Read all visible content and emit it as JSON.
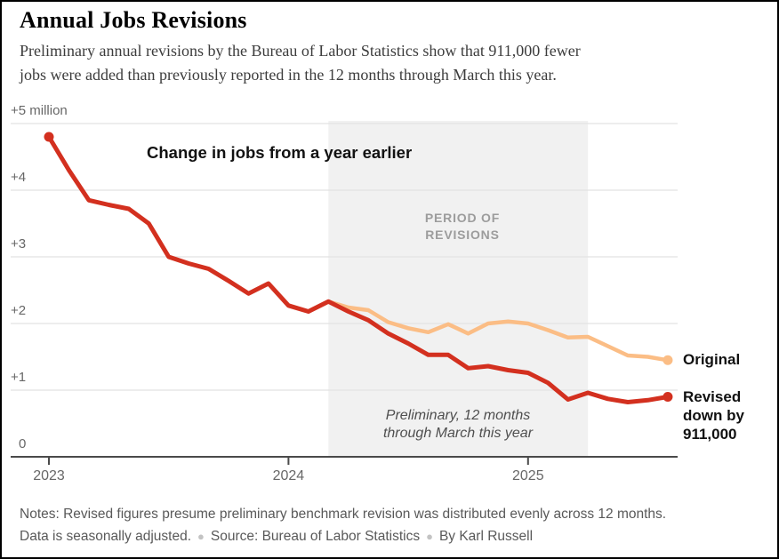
{
  "header": {
    "title": "Annual Jobs Revisions",
    "subtitle": "Preliminary annual revisions by the Bureau of Labor Statistics show that 911,000 fewer\njobs were added than previously reported in the 12 months through March this year."
  },
  "chart_data": {
    "type": "line",
    "title_annotation": "Change in jobs from a year earlier",
    "colors": {
      "original": "#fbbd85",
      "revised": "#d3301f",
      "band": "#f1f1f1",
      "grid": "#e2e2e2",
      "axis": "#4a4a4a"
    },
    "x_axis": {
      "months": [
        "2023-01",
        "2023-02",
        "2023-03",
        "2023-04",
        "2023-05",
        "2023-06",
        "2023-07",
        "2023-08",
        "2023-09",
        "2023-10",
        "2023-11",
        "2023-12",
        "2024-01",
        "2024-02",
        "2024-03",
        "2024-04",
        "2024-05",
        "2024-06",
        "2024-07",
        "2024-08",
        "2024-09",
        "2024-10",
        "2024-11",
        "2024-12",
        "2025-01",
        "2025-02",
        "2025-03",
        "2025-04",
        "2025-05",
        "2025-06",
        "2025-07",
        "2025-08"
      ],
      "ticks": [
        {
          "label": "2023",
          "month": "2023-01"
        },
        {
          "label": "2024",
          "month": "2024-01"
        },
        {
          "label": "2025",
          "month": "2025-01"
        }
      ]
    },
    "y_axis": {
      "unit": "million jobs",
      "range": [
        0,
        5.3
      ],
      "ticks": [
        {
          "label": "+5 million",
          "value": 5
        },
        {
          "label": "+4",
          "value": 4
        },
        {
          "label": "+3",
          "value": 3
        },
        {
          "label": "+2",
          "value": 2
        },
        {
          "label": "+1",
          "value": 1
        },
        {
          "label": "0",
          "value": 0
        }
      ]
    },
    "revision_band": {
      "from": "2024-03",
      "to": "2025-04",
      "label": "PERIOD OF\nREVISIONS"
    },
    "band_note": "Preliminary, 12 months\nthrough March this year",
    "series": [
      {
        "id": "original",
        "name": "Original",
        "values": [
          null,
          null,
          null,
          null,
          null,
          null,
          null,
          null,
          null,
          null,
          null,
          null,
          null,
          null,
          2.33,
          2.24,
          2.2,
          2.02,
          1.93,
          1.87,
          1.99,
          1.85,
          2.0,
          2.03,
          2.0,
          1.9,
          1.79,
          1.8,
          1.66,
          1.52,
          1.5,
          1.45
        ],
        "start_dot": false
      },
      {
        "id": "revised",
        "name": "Revised down by 911,000",
        "values": [
          4.8,
          4.3,
          3.85,
          3.78,
          3.72,
          3.5,
          3.0,
          2.9,
          2.82,
          2.64,
          2.45,
          2.6,
          2.27,
          2.18,
          2.33,
          2.18,
          2.05,
          1.85,
          1.7,
          1.53,
          1.53,
          1.33,
          1.36,
          1.3,
          1.26,
          1.11,
          0.86,
          0.96,
          0.87,
          0.82,
          0.85,
          0.9
        ],
        "start_dot": true
      }
    ],
    "legend": {
      "original": "Original",
      "revised": "Revised\ndown by\n911,000"
    }
  },
  "footer": {
    "notes": "Notes: Revised figures presume preliminary benchmark revision was distributed evenly across 12 months.",
    "adjustment_note": "Data is seasonally adjusted.",
    "source": "Source: Bureau of Labor Statistics",
    "byline": "By Karl Russell"
  }
}
